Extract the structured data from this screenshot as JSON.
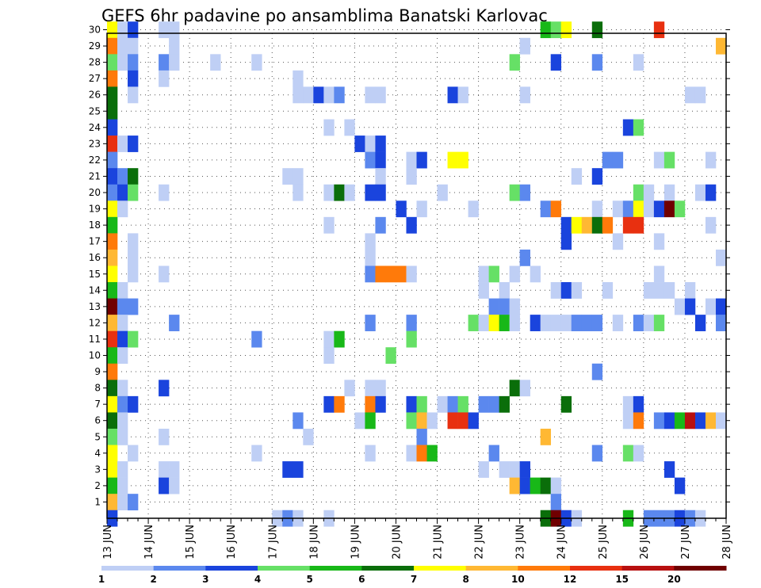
{
  "chart_data": {
    "type": "heatmap",
    "title": "GEFS 6hr padavine po ansamblima Banatski Karlovac",
    "xlabel": "",
    "ylabel": "",
    "x_start_day": "13 JUN",
    "x_step_hours": 6,
    "x_ticks": [
      "13 JUN",
      "14 JUN",
      "15 JUN",
      "16 JUN",
      "17 JUN",
      "18 JUN",
      "19 JUN",
      "20 JUN",
      "21 JUN",
      "22 JUN",
      "23 JUN",
      "24 JUN",
      "25 JUN",
      "26 JUN",
      "27 JUN",
      "28 JUN"
    ],
    "y_ticks": [
      "1",
      "2",
      "3",
      "4",
      "5",
      "6",
      "7",
      "8",
      "9",
      "10",
      "11",
      "12",
      "13",
      "14",
      "15",
      "16",
      "17",
      "18",
      "19",
      "20",
      "21",
      "22",
      "23",
      "24",
      "25",
      "26",
      "27",
      "28",
      "29",
      "30"
    ],
    "grid": true,
    "legend": {
      "placement": "bottom",
      "labels": [
        "1",
        "2",
        "3",
        "4",
        "5",
        "6",
        "7",
        "8",
        "10",
        "12",
        "15",
        "20"
      ],
      "colors": [
        "#bfcff5",
        "#5b88ee",
        "#1a44dd",
        "#66e066",
        "#18b818",
        "#0a6e0a",
        "#ffff00",
        "#ffb833",
        "#ff7a0a",
        "#e83010",
        "#b81010",
        "#700000"
      ]
    },
    "level_colors": [
      "#bfcff5",
      "#5b88ee",
      "#1a44dd",
      "#66e066",
      "#18b818",
      "#0a6e0a",
      "#ffff00",
      "#ffb833",
      "#ff7a0a",
      "#e83010",
      "#b81010",
      "#700000"
    ],
    "cells_note": "each cell is [member, time_step_index, color_level_index]",
    "cells": [
      [
        30,
        0,
        6
      ],
      [
        30,
        1,
        0
      ],
      [
        30,
        2,
        2
      ],
      [
        30,
        5,
        0
      ],
      [
        30,
        6,
        0
      ],
      [
        30,
        42,
        4
      ],
      [
        30,
        43,
        3
      ],
      [
        30,
        44,
        6
      ],
      [
        30,
        47,
        5
      ],
      [
        30,
        53,
        9
      ],
      [
        29,
        0,
        8
      ],
      [
        29,
        1,
        0
      ],
      [
        29,
        2,
        0
      ],
      [
        29,
        6,
        0
      ],
      [
        29,
        40,
        0
      ],
      [
        29,
        59,
        7
      ],
      [
        28,
        0,
        3
      ],
      [
        28,
        1,
        0
      ],
      [
        28,
        2,
        1
      ],
      [
        28,
        5,
        1
      ],
      [
        28,
        6,
        0
      ],
      [
        28,
        10,
        0
      ],
      [
        28,
        14,
        0
      ],
      [
        28,
        39,
        3
      ],
      [
        28,
        43,
        2
      ],
      [
        28,
        47,
        1
      ],
      [
        28,
        51,
        0
      ],
      [
        27,
        0,
        8
      ],
      [
        27,
        2,
        2
      ],
      [
        27,
        5,
        0
      ],
      [
        27,
        18,
        0
      ],
      [
        26,
        0,
        5
      ],
      [
        26,
        2,
        0
      ],
      [
        26,
        18,
        0
      ],
      [
        26,
        19,
        0
      ],
      [
        26,
        20,
        2
      ],
      [
        26,
        21,
        0
      ],
      [
        26,
        22,
        1
      ],
      [
        26,
        25,
        0
      ],
      [
        26,
        26,
        0
      ],
      [
        26,
        33,
        2
      ],
      [
        26,
        34,
        0
      ],
      [
        26,
        40,
        0
      ],
      [
        26,
        56,
        0
      ],
      [
        26,
        57,
        0
      ],
      [
        25,
        0,
        5
      ],
      [
        24,
        0,
        2
      ],
      [
        24,
        21,
        0
      ],
      [
        24,
        23,
        0
      ],
      [
        24,
        50,
        2
      ],
      [
        24,
        51,
        3
      ],
      [
        23,
        0,
        9
      ],
      [
        23,
        1,
        0
      ],
      [
        23,
        2,
        2
      ],
      [
        23,
        24,
        2
      ],
      [
        23,
        25,
        0
      ],
      [
        23,
        26,
        2
      ],
      [
        22,
        0,
        1
      ],
      [
        22,
        25,
        1
      ],
      [
        22,
        26,
        2
      ],
      [
        22,
        29,
        0
      ],
      [
        22,
        30,
        2
      ],
      [
        22,
        33,
        6
      ],
      [
        22,
        34,
        6
      ],
      [
        22,
        48,
        1
      ],
      [
        22,
        49,
        1
      ],
      [
        22,
        53,
        0
      ],
      [
        22,
        54,
        3
      ],
      [
        22,
        58,
        0
      ],
      [
        21,
        0,
        2
      ],
      [
        21,
        1,
        1
      ],
      [
        21,
        2,
        5
      ],
      [
        21,
        17,
        0
      ],
      [
        21,
        18,
        0
      ],
      [
        21,
        26,
        0
      ],
      [
        21,
        29,
        0
      ],
      [
        21,
        45,
        0
      ],
      [
        21,
        47,
        2
      ],
      [
        20,
        0,
        1
      ],
      [
        20,
        1,
        2
      ],
      [
        20,
        2,
        3
      ],
      [
        20,
        5,
        0
      ],
      [
        20,
        18,
        0
      ],
      [
        20,
        21,
        0
      ],
      [
        20,
        22,
        5
      ],
      [
        20,
        23,
        0
      ],
      [
        20,
        25,
        2
      ],
      [
        20,
        26,
        2
      ],
      [
        20,
        32,
        0
      ],
      [
        20,
        39,
        3
      ],
      [
        20,
        40,
        1
      ],
      [
        20,
        51,
        3
      ],
      [
        20,
        52,
        0
      ],
      [
        20,
        54,
        0
      ],
      [
        20,
        57,
        0
      ],
      [
        20,
        58,
        2
      ],
      [
        19,
        0,
        6
      ],
      [
        19,
        1,
        0
      ],
      [
        19,
        28,
        2
      ],
      [
        19,
        30,
        0
      ],
      [
        19,
        35,
        0
      ],
      [
        19,
        42,
        1
      ],
      [
        19,
        43,
        8
      ],
      [
        19,
        47,
        0
      ],
      [
        19,
        49,
        0
      ],
      [
        19,
        50,
        1
      ],
      [
        19,
        51,
        6
      ],
      [
        19,
        52,
        0
      ],
      [
        19,
        53,
        2
      ],
      [
        19,
        54,
        11
      ],
      [
        19,
        55,
        3
      ],
      [
        18,
        0,
        4
      ],
      [
        18,
        21,
        0
      ],
      [
        18,
        26,
        1
      ],
      [
        18,
        29,
        2
      ],
      [
        18,
        44,
        2
      ],
      [
        18,
        45,
        6
      ],
      [
        18,
        46,
        7
      ],
      [
        18,
        47,
        5
      ],
      [
        18,
        48,
        8
      ],
      [
        18,
        50,
        9
      ],
      [
        18,
        51,
        9
      ],
      [
        18,
        58,
        0
      ],
      [
        17,
        0,
        8
      ],
      [
        17,
        2,
        0
      ],
      [
        17,
        25,
        0
      ],
      [
        17,
        44,
        2
      ],
      [
        17,
        49,
        0
      ],
      [
        17,
        53,
        0
      ],
      [
        16,
        0,
        7
      ],
      [
        16,
        2,
        0
      ],
      [
        16,
        25,
        0
      ],
      [
        16,
        40,
        1
      ],
      [
        16,
        59,
        0
      ],
      [
        15,
        0,
        6
      ],
      [
        15,
        2,
        0
      ],
      [
        15,
        5,
        0
      ],
      [
        15,
        25,
        1
      ],
      [
        15,
        26,
        8
      ],
      [
        15,
        27,
        8
      ],
      [
        15,
        28,
        8
      ],
      [
        15,
        29,
        0
      ],
      [
        15,
        36,
        0
      ],
      [
        15,
        37,
        3
      ],
      [
        15,
        39,
        0
      ],
      [
        15,
        41,
        0
      ],
      [
        15,
        53,
        0
      ],
      [
        14,
        0,
        4
      ],
      [
        14,
        1,
        0
      ],
      [
        14,
        36,
        0
      ],
      [
        14,
        38,
        0
      ],
      [
        14,
        43,
        0
      ],
      [
        14,
        44,
        2
      ],
      [
        14,
        45,
        0
      ],
      [
        14,
        48,
        0
      ],
      [
        14,
        52,
        0
      ],
      [
        14,
        53,
        0
      ],
      [
        14,
        54,
        0
      ],
      [
        14,
        56,
        0
      ],
      [
        13,
        0,
        11
      ],
      [
        13,
        1,
        1
      ],
      [
        13,
        2,
        1
      ],
      [
        13,
        37,
        1
      ],
      [
        13,
        38,
        1
      ],
      [
        13,
        39,
        0
      ],
      [
        13,
        55,
        0
      ],
      [
        13,
        56,
        2
      ],
      [
        13,
        58,
        0
      ],
      [
        13,
        59,
        2
      ],
      [
        12,
        0,
        7
      ],
      [
        12,
        1,
        0
      ],
      [
        12,
        6,
        1
      ],
      [
        12,
        25,
        1
      ],
      [
        12,
        29,
        1
      ],
      [
        12,
        35,
        3
      ],
      [
        12,
        36,
        0
      ],
      [
        12,
        37,
        6
      ],
      [
        12,
        38,
        4
      ],
      [
        12,
        39,
        0
      ],
      [
        12,
        41,
        2
      ],
      [
        12,
        42,
        0
      ],
      [
        12,
        43,
        0
      ],
      [
        12,
        44,
        0
      ],
      [
        12,
        45,
        1
      ],
      [
        12,
        46,
        1
      ],
      [
        12,
        47,
        1
      ],
      [
        12,
        49,
        0
      ],
      [
        12,
        51,
        1
      ],
      [
        12,
        52,
        0
      ],
      [
        12,
        53,
        3
      ],
      [
        12,
        57,
        2
      ],
      [
        12,
        59,
        1
      ],
      [
        11,
        0,
        9
      ],
      [
        11,
        1,
        2
      ],
      [
        11,
        2,
        3
      ],
      [
        11,
        14,
        1
      ],
      [
        11,
        21,
        0
      ],
      [
        11,
        22,
        4
      ],
      [
        11,
        29,
        3
      ],
      [
        10,
        0,
        4
      ],
      [
        10,
        1,
        0
      ],
      [
        10,
        21,
        0
      ],
      [
        10,
        27,
        3
      ],
      [
        9,
        0,
        8
      ],
      [
        9,
        47,
        1
      ],
      [
        8,
        0,
        5
      ],
      [
        8,
        1,
        0
      ],
      [
        8,
        5,
        2
      ],
      [
        8,
        23,
        0
      ],
      [
        8,
        25,
        0
      ],
      [
        8,
        26,
        0
      ],
      [
        8,
        39,
        5
      ],
      [
        8,
        40,
        0
      ],
      [
        7,
        0,
        6
      ],
      [
        7,
        1,
        1
      ],
      [
        7,
        2,
        2
      ],
      [
        7,
        21,
        2
      ],
      [
        7,
        22,
        8
      ],
      [
        7,
        25,
        8
      ],
      [
        7,
        26,
        2
      ],
      [
        7,
        29,
        2
      ],
      [
        7,
        30,
        3
      ],
      [
        7,
        32,
        0
      ],
      [
        7,
        33,
        1
      ],
      [
        7,
        34,
        3
      ],
      [
        7,
        36,
        1
      ],
      [
        7,
        37,
        1
      ],
      [
        7,
        38,
        5
      ],
      [
        7,
        44,
        5
      ],
      [
        7,
        50,
        0
      ],
      [
        7,
        51,
        2
      ],
      [
        6,
        0,
        5
      ],
      [
        6,
        1,
        0
      ],
      [
        6,
        18,
        1
      ],
      [
        6,
        24,
        0
      ],
      [
        6,
        25,
        4
      ],
      [
        6,
        29,
        3
      ],
      [
        6,
        30,
        7
      ],
      [
        6,
        31,
        0
      ],
      [
        6,
        33,
        9
      ],
      [
        6,
        34,
        9
      ],
      [
        6,
        35,
        2
      ],
      [
        6,
        50,
        0
      ],
      [
        6,
        51,
        8
      ],
      [
        6,
        53,
        1
      ],
      [
        6,
        54,
        2
      ],
      [
        6,
        55,
        4
      ],
      [
        6,
        56,
        10
      ],
      [
        6,
        57,
        2
      ],
      [
        6,
        58,
        7
      ],
      [
        6,
        59,
        0
      ],
      [
        5,
        0,
        3
      ],
      [
        5,
        1,
        0
      ],
      [
        5,
        5,
        0
      ],
      [
        5,
        19,
        0
      ],
      [
        5,
        30,
        1
      ],
      [
        5,
        42,
        7
      ],
      [
        4,
        0,
        6
      ],
      [
        4,
        2,
        0
      ],
      [
        4,
        14,
        0
      ],
      [
        4,
        25,
        0
      ],
      [
        4,
        29,
        0
      ],
      [
        4,
        30,
        8
      ],
      [
        4,
        31,
        4
      ],
      [
        4,
        37,
        1
      ],
      [
        4,
        47,
        1
      ],
      [
        4,
        50,
        3
      ],
      [
        4,
        51,
        0
      ],
      [
        3,
        0,
        6
      ],
      [
        3,
        1,
        0
      ],
      [
        3,
        5,
        0
      ],
      [
        3,
        6,
        0
      ],
      [
        3,
        17,
        2
      ],
      [
        3,
        18,
        2
      ],
      [
        3,
        36,
        0
      ],
      [
        3,
        38,
        0
      ],
      [
        3,
        39,
        0
      ],
      [
        3,
        40,
        2
      ],
      [
        3,
        54,
        2
      ],
      [
        2,
        0,
        4
      ],
      [
        2,
        1,
        0
      ],
      [
        2,
        5,
        2
      ],
      [
        2,
        6,
        0
      ],
      [
        2,
        39,
        7
      ],
      [
        2,
        40,
        2
      ],
      [
        2,
        41,
        4
      ],
      [
        2,
        42,
        5
      ],
      [
        2,
        43,
        0
      ],
      [
        2,
        55,
        2
      ],
      [
        1,
        0,
        7
      ],
      [
        1,
        1,
        0
      ],
      [
        1,
        2,
        1
      ],
      [
        1,
        43,
        1
      ],
      [
        0,
        0,
        2
      ],
      [
        0,
        16,
        0
      ],
      [
        0,
        17,
        1
      ],
      [
        0,
        18,
        0
      ],
      [
        0,
        21,
        0
      ],
      [
        0,
        42,
        5
      ],
      [
        0,
        43,
        11
      ],
      [
        0,
        44,
        2
      ],
      [
        0,
        45,
        0
      ],
      [
        0,
        50,
        4
      ],
      [
        0,
        52,
        1
      ],
      [
        0,
        53,
        1
      ],
      [
        0,
        54,
        1
      ],
      [
        0,
        55,
        2
      ],
      [
        0,
        56,
        1
      ],
      [
        0,
        57,
        0
      ]
    ]
  }
}
